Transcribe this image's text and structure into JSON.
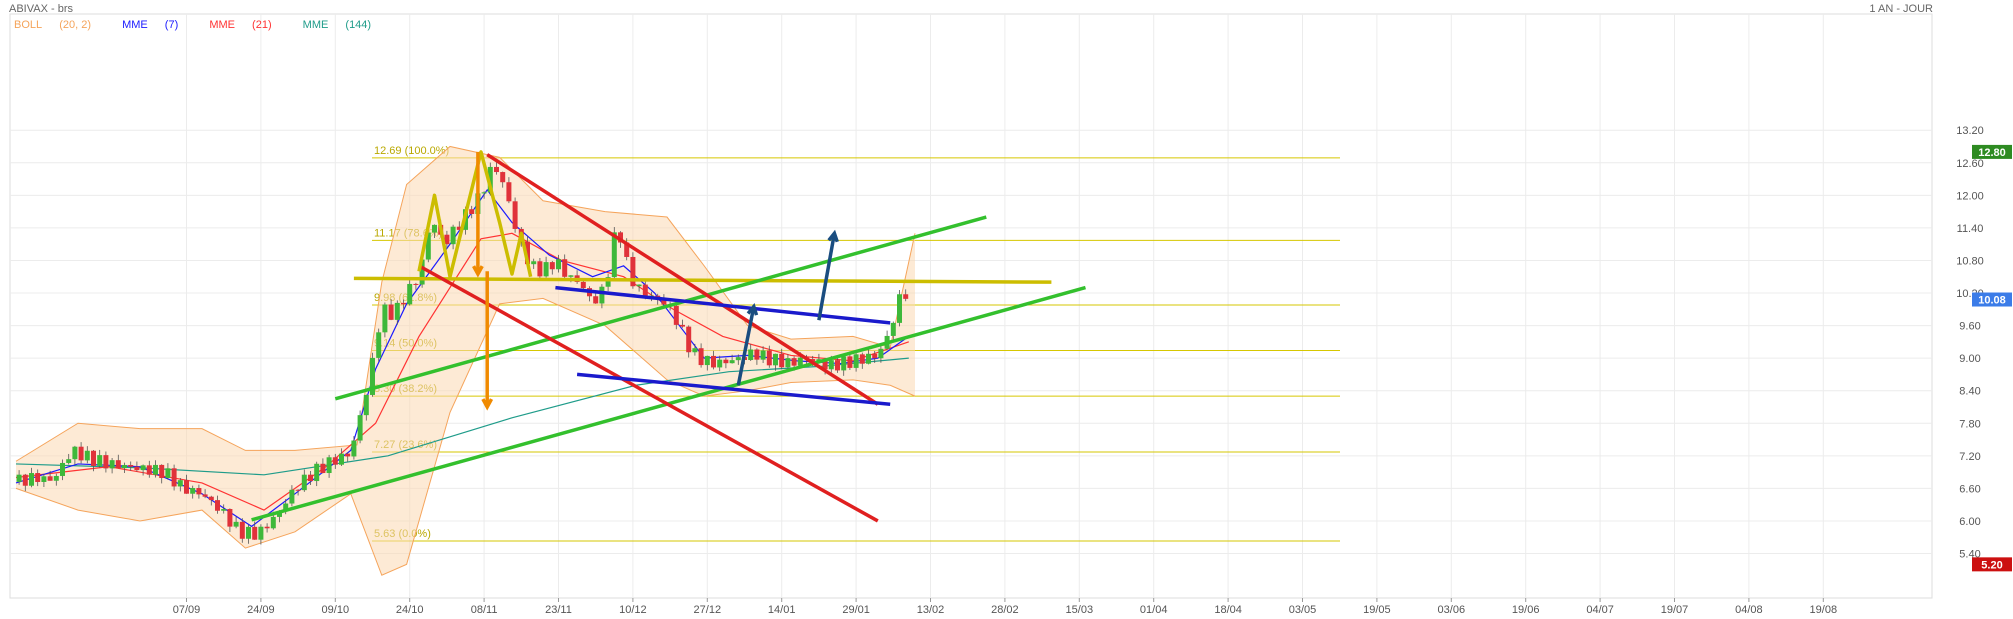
{
  "header": {
    "title": "ABIVAX - brs",
    "period": "1 AN - JOUR"
  },
  "legend": [
    {
      "label": "BOLL",
      "params": "(20, 2)",
      "color": "#f5a45b"
    },
    {
      "label": "MME",
      "params": "(7)",
      "color": "#1a1aff"
    },
    {
      "label": "MME",
      "params": "(21)",
      "color": "#ff3333"
    },
    {
      "label": "MME",
      "params": "(144)",
      "color": "#1f9c8a"
    }
  ],
  "chart_data": {
    "type": "candlestick",
    "ylim": [
      5.0,
      13.4
    ],
    "y_ticks": [
      "5.40",
      "6.00",
      "6.60",
      "7.20",
      "7.80",
      "8.40",
      "9.00",
      "9.60",
      "10.20",
      "10.80",
      "11.40",
      "12.00",
      "12.60",
      "13.20"
    ],
    "x_ticks": [
      "07/09",
      "24/09",
      "09/10",
      "24/10",
      "08/11",
      "23/11",
      "10/12",
      "27/12",
      "14/01",
      "29/01",
      "13/02",
      "28/02",
      "15/03",
      "01/04",
      "18/04",
      "03/05",
      "19/05",
      "03/06",
      "19/06",
      "04/07",
      "19/07",
      "04/08",
      "19/08"
    ],
    "x_tick_index": [
      55,
      79,
      103,
      127,
      151,
      175,
      199,
      223,
      247,
      271,
      295,
      319,
      343,
      367,
      391,
      415,
      439,
      463,
      487,
      511,
      535,
      559,
      583
    ],
    "price_badges": [
      {
        "value": "12.80",
        "price": 12.8,
        "color": "#2e8b22"
      },
      {
        "value": "10.08",
        "price": 10.08,
        "color": "#3b7ce8"
      },
      {
        "value": "5.20",
        "price": 5.2,
        "color": "#cc1010"
      }
    ],
    "fibonacci": [
      {
        "label": "12.69  (100.0%)",
        "price": 12.69
      },
      {
        "label": "11.17  (78.6%)",
        "price": 11.17
      },
      {
        "label": "9.98  (61.8%)",
        "price": 9.98
      },
      {
        "label": "9.14  (50.0%)",
        "price": 9.14
      },
      {
        "label": "8.30  (38.2%)",
        "price": 8.3
      },
      {
        "label": "7.27  (23.6%)",
        "price": 7.27
      },
      {
        "label": "5.63  (0.0%)",
        "price": 5.63
      }
    ],
    "close_series": [
      [
        0,
        6.72
      ],
      [
        6,
        6.8
      ],
      [
        12,
        6.75
      ],
      [
        18,
        7.3
      ],
      [
        24,
        7.15
      ],
      [
        30,
        7.05
      ],
      [
        36,
        7.0
      ],
      [
        42,
        6.95
      ],
      [
        48,
        6.9
      ],
      [
        54,
        6.6
      ],
      [
        60,
        6.5
      ],
      [
        66,
        6.2
      ],
      [
        72,
        5.8
      ],
      [
        78,
        5.75
      ],
      [
        84,
        6.1
      ],
      [
        90,
        6.6
      ],
      [
        96,
        6.9
      ],
      [
        102,
        7.1
      ],
      [
        108,
        7.25
      ],
      [
        114,
        8.6
      ],
      [
        118,
        9.9
      ],
      [
        122,
        9.8
      ],
      [
        126,
        10.2
      ],
      [
        130,
        10.5
      ],
      [
        134,
        11.6
      ],
      [
        138,
        11.1
      ],
      [
        142,
        11.4
      ],
      [
        146,
        11.7
      ],
      [
        150,
        12.0
      ],
      [
        154,
        12.6
      ],
      [
        158,
        12.1
      ],
      [
        162,
        11.2
      ],
      [
        166,
        10.7
      ],
      [
        170,
        10.6
      ],
      [
        174,
        10.8
      ],
      [
        178,
        10.5
      ],
      [
        182,
        10.4
      ],
      [
        186,
        10.0
      ],
      [
        190,
        10.3
      ],
      [
        194,
        11.5
      ],
      [
        198,
        10.5
      ],
      [
        202,
        10.2
      ],
      [
        206,
        10.1
      ],
      [
        210,
        10.0
      ],
      [
        214,
        9.6
      ],
      [
        218,
        9.1
      ],
      [
        222,
        8.95
      ],
      [
        226,
        8.9
      ],
      [
        230,
        8.95
      ],
      [
        234,
        9.0
      ],
      [
        238,
        9.1
      ],
      [
        242,
        9.0
      ],
      [
        246,
        8.95
      ],
      [
        250,
        8.9
      ],
      [
        254,
        9.0
      ],
      [
        258,
        8.95
      ],
      [
        262,
        8.85
      ],
      [
        266,
        8.9
      ],
      [
        270,
        8.95
      ],
      [
        274,
        9.0
      ],
      [
        278,
        9.05
      ],
      [
        282,
        9.5
      ],
      [
        286,
        10.3
      ],
      [
        288,
        10.08
      ]
    ],
    "ema7": [
      [
        0,
        6.7
      ],
      [
        20,
        7.05
      ],
      [
        40,
        7.0
      ],
      [
        60,
        6.5
      ],
      [
        76,
        5.9
      ],
      [
        90,
        6.5
      ],
      [
        108,
        7.3
      ],
      [
        116,
        8.8
      ],
      [
        126,
        10.0
      ],
      [
        140,
        11.1
      ],
      [
        152,
        12.1
      ],
      [
        160,
        11.5
      ],
      [
        172,
        10.9
      ],
      [
        186,
        10.5
      ],
      [
        196,
        10.7
      ],
      [
        206,
        10.2
      ],
      [
        214,
        9.6
      ],
      [
        222,
        9.0
      ],
      [
        236,
        9.05
      ],
      [
        252,
        8.95
      ],
      [
        266,
        8.9
      ],
      [
        278,
        9.0
      ],
      [
        288,
        9.4
      ]
    ],
    "ema21": [
      [
        0,
        6.8
      ],
      [
        30,
        7.0
      ],
      [
        60,
        6.7
      ],
      [
        80,
        6.2
      ],
      [
        100,
        7.0
      ],
      [
        116,
        7.8
      ],
      [
        130,
        9.4
      ],
      [
        150,
        11.2
      ],
      [
        160,
        11.3
      ],
      [
        176,
        10.8
      ],
      [
        196,
        10.5
      ],
      [
        212,
        9.9
      ],
      [
        228,
        9.4
      ],
      [
        250,
        9.05
      ],
      [
        270,
        8.95
      ],
      [
        288,
        9.3
      ]
    ],
    "ema144": [
      [
        0,
        7.05
      ],
      [
        40,
        6.98
      ],
      [
        80,
        6.85
      ],
      [
        120,
        7.2
      ],
      [
        160,
        7.9
      ],
      [
        200,
        8.5
      ],
      [
        230,
        8.75
      ],
      [
        260,
        8.85
      ],
      [
        288,
        9.0
      ]
    ],
    "bollinger_upper": [
      [
        0,
        7.1
      ],
      [
        20,
        7.8
      ],
      [
        40,
        7.7
      ],
      [
        60,
        7.7
      ],
      [
        74,
        7.3
      ],
      [
        90,
        7.3
      ],
      [
        110,
        7.4
      ],
      [
        118,
        10.4
      ],
      [
        126,
        12.2
      ],
      [
        140,
        12.9
      ],
      [
        156,
        12.7
      ],
      [
        170,
        11.9
      ],
      [
        190,
        11.7
      ],
      [
        210,
        11.6
      ],
      [
        222,
        10.7
      ],
      [
        236,
        9.6
      ],
      [
        250,
        9.35
      ],
      [
        270,
        9.4
      ],
      [
        282,
        9.2
      ],
      [
        290,
        11.3
      ]
    ],
    "bollinger_lower": [
      [
        0,
        6.6
      ],
      [
        20,
        6.2
      ],
      [
        40,
        6.0
      ],
      [
        60,
        6.2
      ],
      [
        74,
        5.5
      ],
      [
        90,
        5.8
      ],
      [
        108,
        6.5
      ],
      [
        118,
        5.0
      ],
      [
        126,
        5.2
      ],
      [
        140,
        8.0
      ],
      [
        156,
        10.0
      ],
      [
        170,
        10.1
      ],
      [
        190,
        9.6
      ],
      [
        210,
        8.6
      ],
      [
        222,
        8.3
      ],
      [
        236,
        8.4
      ],
      [
        250,
        8.55
      ],
      [
        270,
        8.6
      ],
      [
        282,
        8.5
      ],
      [
        290,
        8.3
      ]
    ],
    "lines": [
      {
        "color": "#ccbd00",
        "points": [
          [
            109,
            10.47
          ],
          [
            334,
            10.4
          ]
        ]
      },
      {
        "color": "#33c02d",
        "points": [
          [
            103,
            8.25
          ],
          [
            313,
            11.6
          ]
        ]
      },
      {
        "color": "#33c02d",
        "points": [
          [
            76,
            6.02
          ],
          [
            345,
            10.3
          ]
        ]
      },
      {
        "color": "#e02020",
        "points": [
          [
            152,
            12.75
          ],
          [
            278,
            8.15
          ]
        ]
      },
      {
        "color": "#e02020",
        "points": [
          [
            130,
            10.7
          ],
          [
            278,
            6.0
          ]
        ]
      },
      {
        "color": "#1a1acc",
        "points": [
          [
            174,
            10.3
          ],
          [
            282,
            9.65
          ]
        ]
      },
      {
        "color": "#1a1acc",
        "points": [
          [
            181,
            8.7
          ],
          [
            282,
            8.15
          ]
        ]
      },
      {
        "color": "#ccbd00",
        "points": [
          [
            130,
            10.6
          ],
          [
            135,
            12.0
          ],
          [
            140,
            10.5
          ],
          [
            150,
            12.8
          ],
          [
            156,
            11.5
          ],
          [
            160,
            10.55
          ],
          [
            163,
            11.3
          ],
          [
            166,
            10.5
          ]
        ]
      }
    ],
    "arrows": [
      {
        "color": "#f08a00",
        "from": [
          149,
          12.8
        ],
        "to": [
          149,
          10.55
        ]
      },
      {
        "color": "#f08a00",
        "from": [
          152,
          10.6
        ],
        "to": [
          152,
          8.1
        ]
      },
      {
        "color": "#1a4d80",
        "from": [
          233,
          8.5
        ],
        "to": [
          238,
          9.95
        ]
      },
      {
        "color": "#1a4d80",
        "from": [
          259,
          9.7
        ],
        "to": [
          264,
          11.3
        ]
      }
    ]
  }
}
